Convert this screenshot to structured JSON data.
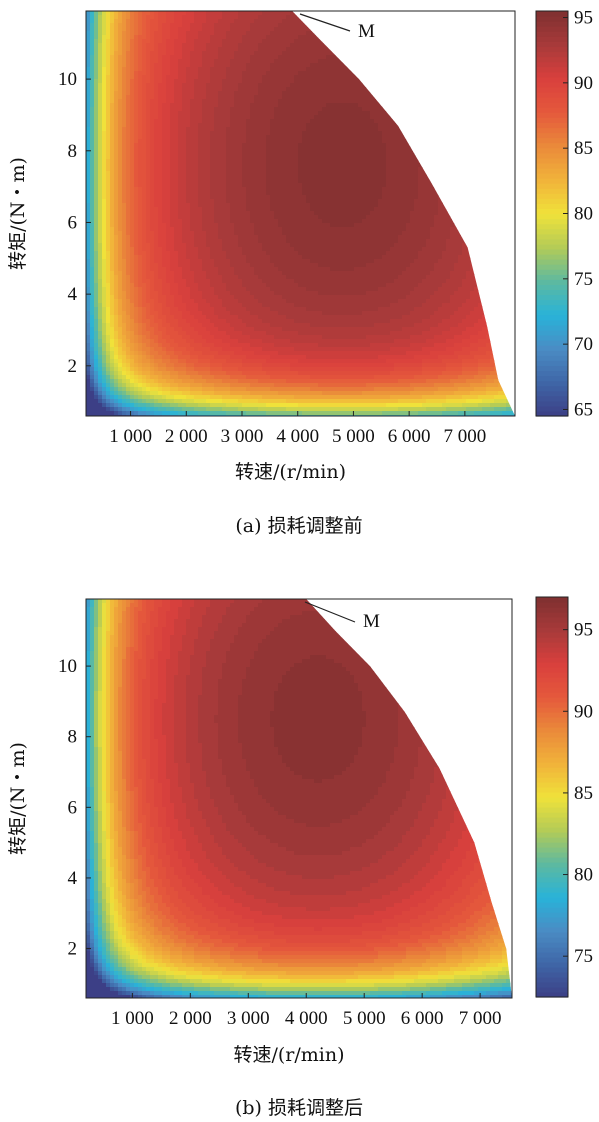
{
  "chart_data": [
    {
      "type": "heatmap",
      "caption": "(a) 损耗调整前",
      "xlabel": "转速/(r/min)",
      "ylabel": "转矩/(N・m)",
      "xticks": [
        1000,
        2000,
        3000,
        4000,
        5000,
        6000,
        7000
      ],
      "xtick_labels": [
        "1 000",
        "2 000",
        "3 000",
        "4 000",
        "5 000",
        "6 000",
        "7 000"
      ],
      "yticks": [
        2,
        4,
        6,
        8,
        10
      ],
      "ytick_labels": [
        "2",
        "4",
        "6",
        "8",
        "10"
      ],
      "xlim": [
        200,
        7900
      ],
      "ylim": [
        0.6,
        11.9
      ],
      "colorbar": {
        "range": [
          64.5,
          95.5
        ],
        "ticks": [
          65,
          70,
          75,
          80,
          85,
          90,
          95
        ],
        "tick_labels": [
          "65",
          "70",
          "75",
          "80",
          "85",
          "90",
          "95"
        ],
        "colors": [
          "#3c3f86",
          "#3f66a7",
          "#4a8cc4",
          "#29b3d8",
          "#5db9a0",
          "#b3cb57",
          "#f0e23a",
          "#f1b33a",
          "#ea8a3a",
          "#e5593c",
          "#d9403d",
          "#a83a3a",
          "#7f3030"
        ]
      },
      "annotation": "M",
      "peak_efficiency": 95,
      "peak_region": {
        "speed_center": 4800,
        "torque_center": 7.6
      },
      "max_torque_envelope": {
        "speed": [
          200,
          3900,
          4400,
          5100,
          5800,
          6400,
          7050,
          7400,
          7600,
          7900
        ],
        "torque": [
          11.9,
          11.9,
          11.1,
          10.0,
          8.7,
          7.1,
          5.3,
          3.1,
          1.6,
          0.6
        ]
      }
    },
    {
      "type": "heatmap",
      "caption": "(b) 损耗调整后",
      "xlabel": "转速/(r/min)",
      "ylabel": "转矩/(N・m)",
      "xticks": [
        1000,
        2000,
        3000,
        4000,
        5000,
        6000,
        7000
      ],
      "xtick_labels": [
        "1 000",
        "2 000",
        "3 000",
        "4 000",
        "5 000",
        "6 000",
        "7 000"
      ],
      "yticks": [
        2,
        4,
        6,
        8,
        10
      ],
      "ytick_labels": [
        "2",
        "4",
        "6",
        "8",
        "10"
      ],
      "xlim": [
        200,
        7550
      ],
      "ylim": [
        0.6,
        11.9
      ],
      "colorbar": {
        "range": [
          72.5,
          97
        ],
        "ticks": [
          75,
          80,
          85,
          90,
          95
        ],
        "tick_labels": [
          "75",
          "80",
          "85",
          "90",
          "95"
        ],
        "colors": [
          "#3c3f86",
          "#3f66a7",
          "#4a8cc4",
          "#29b3d8",
          "#5db9a0",
          "#b3cb57",
          "#f0e23a",
          "#f1b33a",
          "#ea8a3a",
          "#e5593c",
          "#d9403d",
          "#a83a3a",
          "#7f3030"
        ]
      },
      "annotation": "M",
      "peak_efficiency": 96.5,
      "peak_region": {
        "speed_center": 4200,
        "torque_center": 8.5
      },
      "max_torque_envelope": {
        "speed": [
          200,
          4000,
          4500,
          5100,
          5700,
          6300,
          6900,
          7200,
          7450,
          7550
        ],
        "torque": [
          11.9,
          11.9,
          11.0,
          10.0,
          8.7,
          7.1,
          5.0,
          3.3,
          2.0,
          0.6
        ]
      }
    }
  ]
}
